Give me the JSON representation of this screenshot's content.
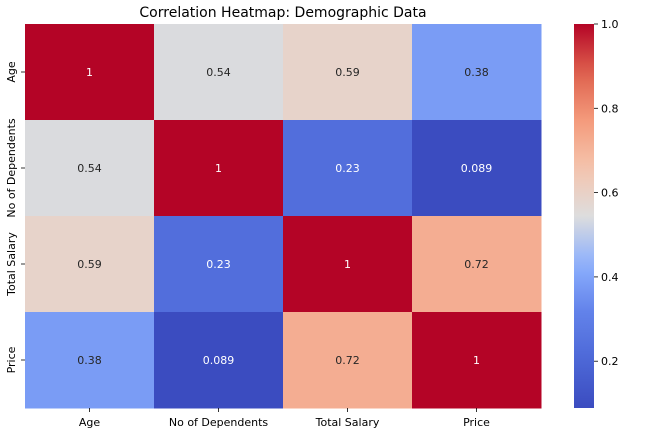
{
  "chart_data": {
    "type": "heatmap",
    "title": "Correlation Heatmap: Demographic Data",
    "xlabel": "",
    "ylabel": "",
    "x_categories": [
      "Age",
      "No of Dependents",
      "Total Salary",
      "Price"
    ],
    "y_categories": [
      "Age",
      "No of Dependents",
      "Total Salary",
      "Price"
    ],
    "values": [
      [
        1,
        0.54,
        0.59,
        0.38
      ],
      [
        0.54,
        1,
        0.23,
        0.089
      ],
      [
        0.59,
        0.23,
        1,
        0.72
      ],
      [
        0.38,
        0.089,
        0.72,
        1
      ]
    ],
    "cell_labels": [
      [
        "1",
        "0.54",
        "0.59",
        "0.38"
      ],
      [
        "0.54",
        "1",
        "0.23",
        "0.089"
      ],
      [
        "0.59",
        "0.23",
        "1",
        "0.72"
      ],
      [
        "0.38",
        "0.089",
        "0.72",
        "1"
      ]
    ],
    "colormap": "coolwarm",
    "color_range": [
      0.089,
      1
    ],
    "colorbar": {
      "position": "right",
      "ticks": [
        0.2,
        0.4,
        0.6,
        0.8,
        1.0
      ],
      "tick_labels": [
        "0.2",
        "0.4",
        "0.6",
        "0.8",
        "1.0"
      ]
    },
    "grid": false,
    "label_colors": {
      "dark": "#262626",
      "light": "#ffffff"
    }
  }
}
